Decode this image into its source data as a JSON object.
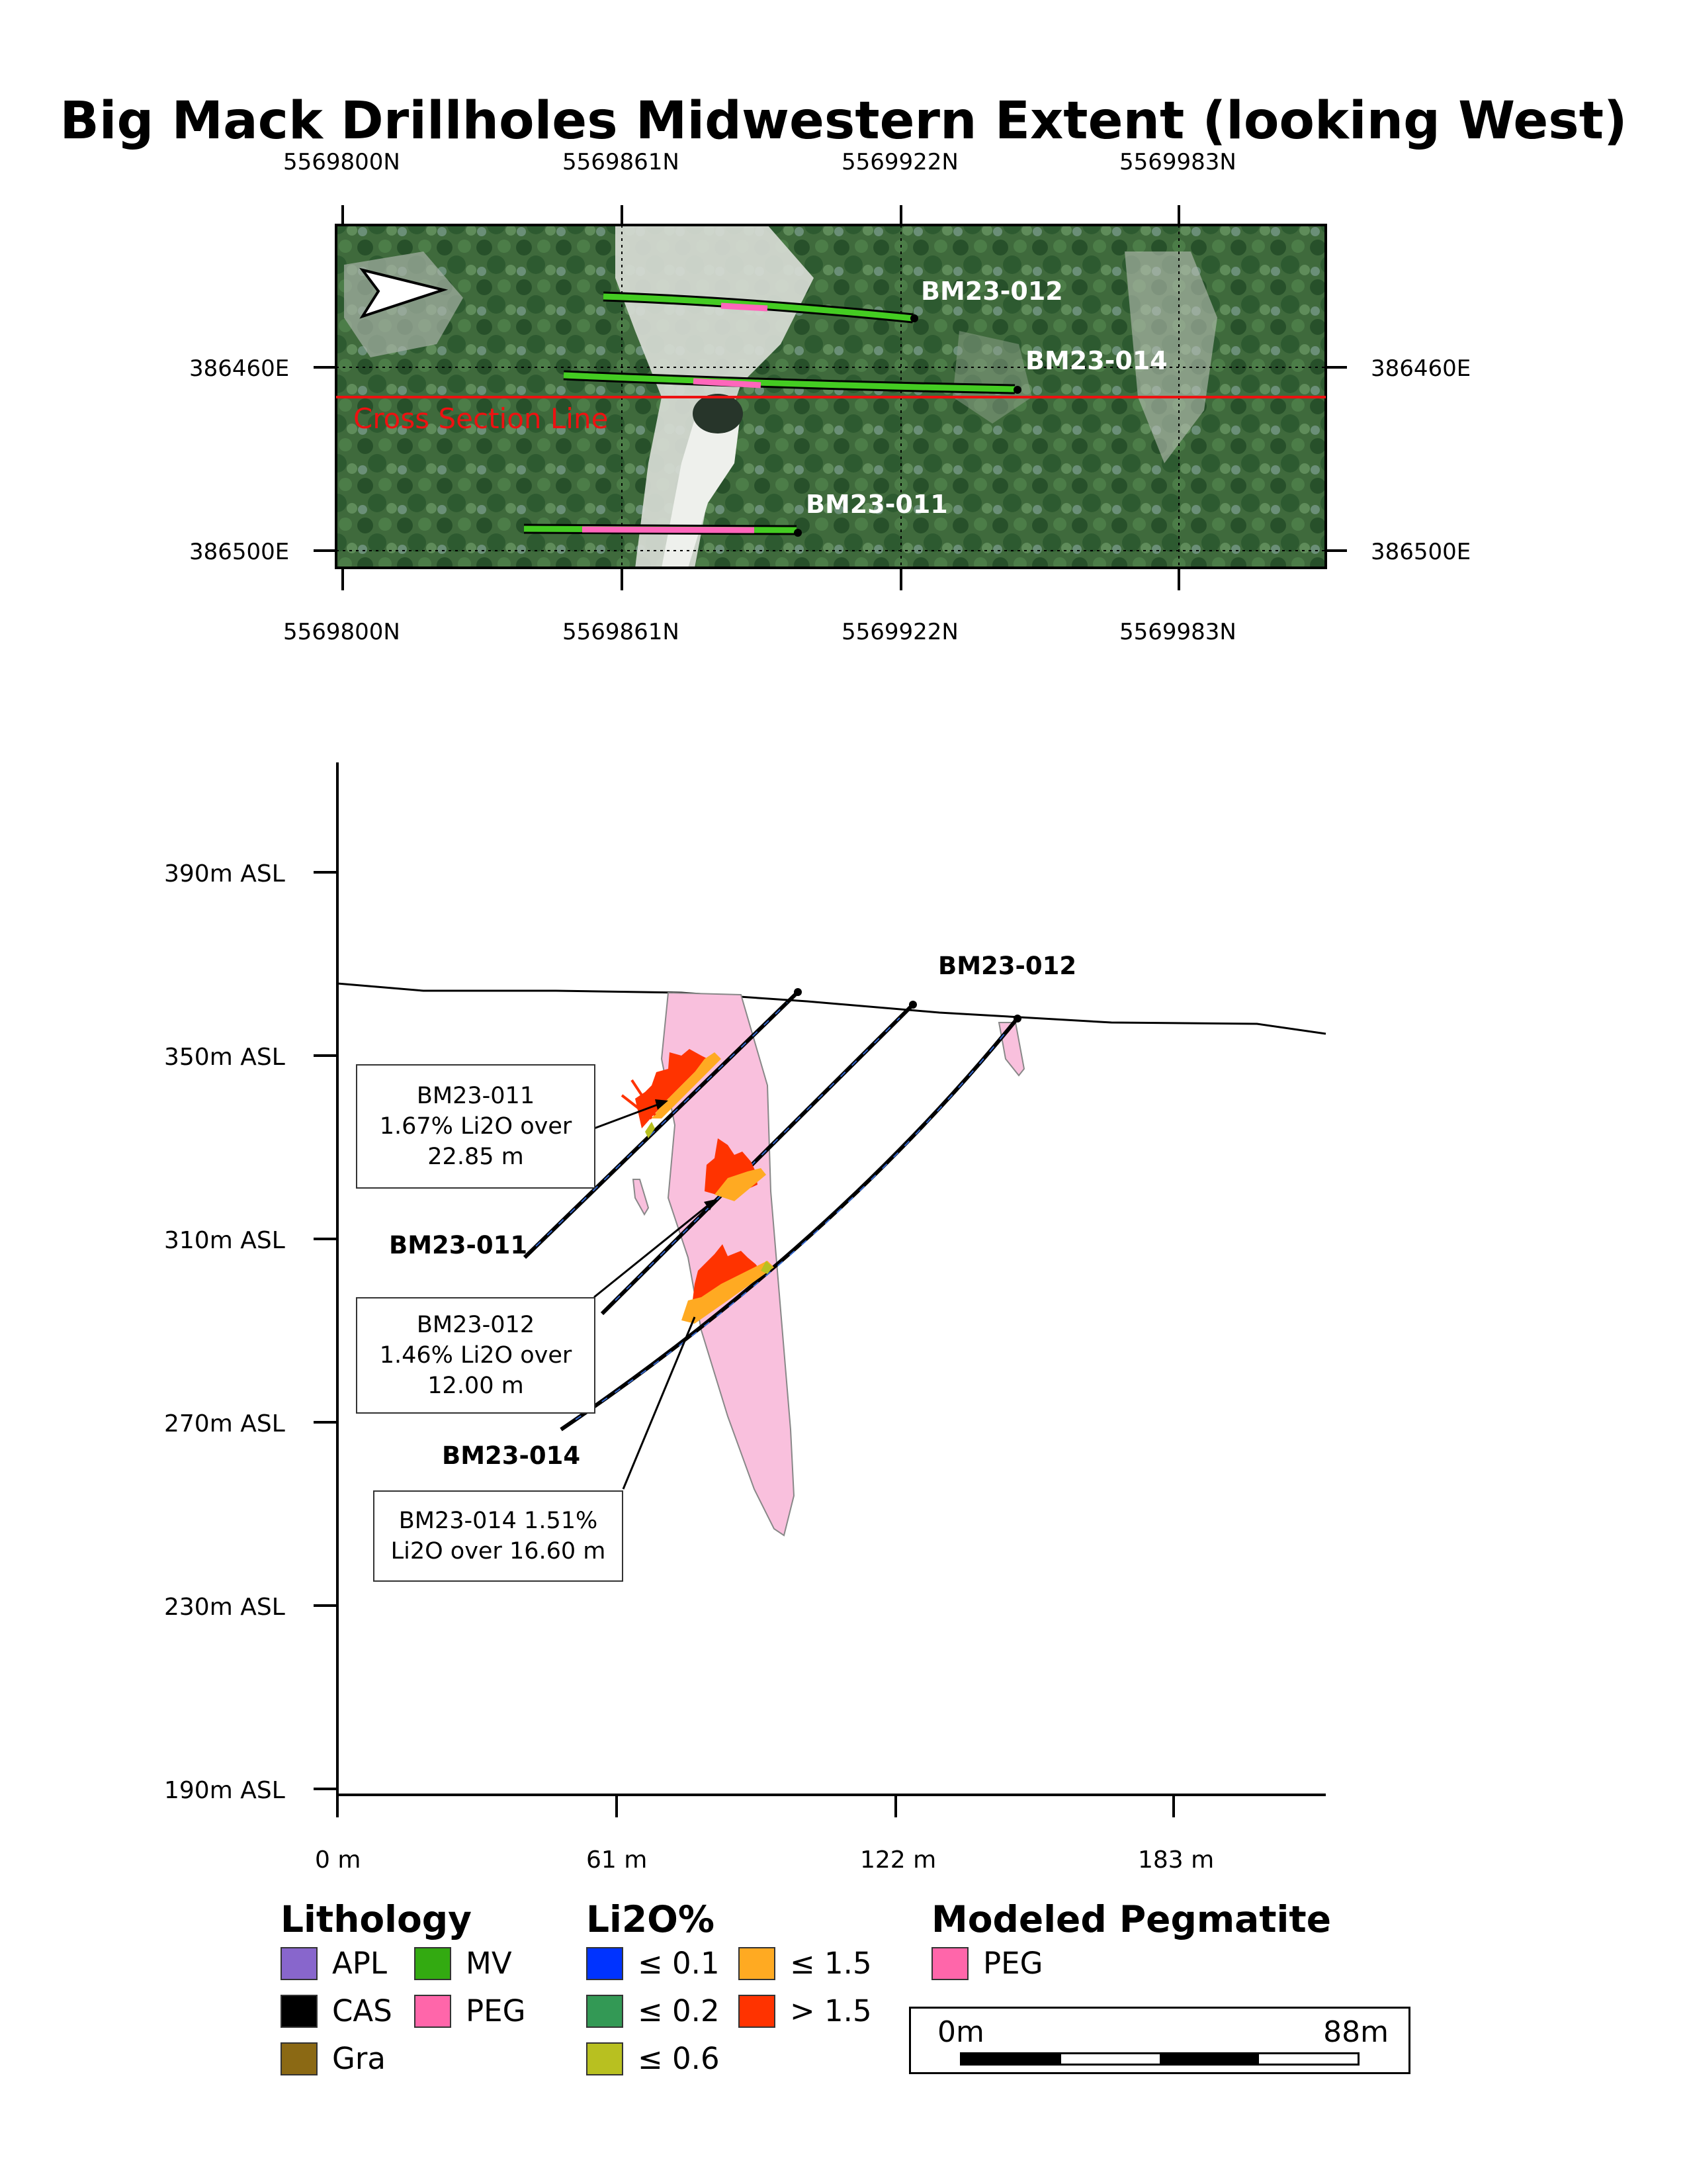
{
  "title": "Big Mack Drillholes Midwestern Extent (looking West)",
  "plan_map": {
    "northing_labels": [
      "5569800N",
      "5569861N",
      "5569922N",
      "5569983N"
    ],
    "easting_labels": [
      "386460E",
      "386500E"
    ],
    "cross_section_label": "Cross Section Line",
    "holes": [
      {
        "name": "BM23-012"
      },
      {
        "name": "BM23-014"
      },
      {
        "name": "BM23-011"
      }
    ],
    "north_arrow": "north-arrow-icon"
  },
  "section": {
    "y_labels": [
      "390m ASL",
      "350m ASL",
      "310m ASL",
      "270m ASL",
      "230m ASL",
      "190m ASL"
    ],
    "x_labels": [
      "0 m",
      "61 m",
      "122 m",
      "183 m"
    ],
    "holes": [
      "BM23-011",
      "BM23-012",
      "BM23-014"
    ],
    "callouts": [
      {
        "lines": [
          "BM23-011",
          "1.67% Li2O over",
          "22.85 m"
        ]
      },
      {
        "lines": [
          "BM23-012",
          "1.46% Li2O over",
          "12.00 m"
        ]
      },
      {
        "lines": [
          "BM23-014 1.51%",
          "Li2O over 16.60 m"
        ]
      }
    ]
  },
  "legend": {
    "lithology": {
      "title": "Lithology",
      "items": [
        {
          "label": "APL",
          "color": "#8866cc"
        },
        {
          "label": "MV",
          "color": "#33aa11"
        },
        {
          "label": "CAS",
          "color": "#000000"
        },
        {
          "label": "PEG",
          "color": "#ff66aa"
        },
        {
          "label": "Gra",
          "color": "#8b6914"
        }
      ]
    },
    "li2o": {
      "title": "Li2O%",
      "items": [
        {
          "label": "≤ 0.1",
          "color": "#0033ff"
        },
        {
          "label": "≤ 1.5",
          "color": "#ffaa22"
        },
        {
          "label": "≤ 0.2",
          "color": "#339955"
        },
        {
          "label": "> 1.5",
          "color": "#ff3300"
        },
        {
          "label": "≤ 0.6",
          "color": "#b8c020"
        }
      ]
    },
    "modeled": {
      "title": "Modeled Pegmatite",
      "items": [
        {
          "label": "PEG",
          "color": "#ff66aa"
        }
      ]
    },
    "scale": {
      "start": "0m",
      "end": "88m"
    }
  }
}
